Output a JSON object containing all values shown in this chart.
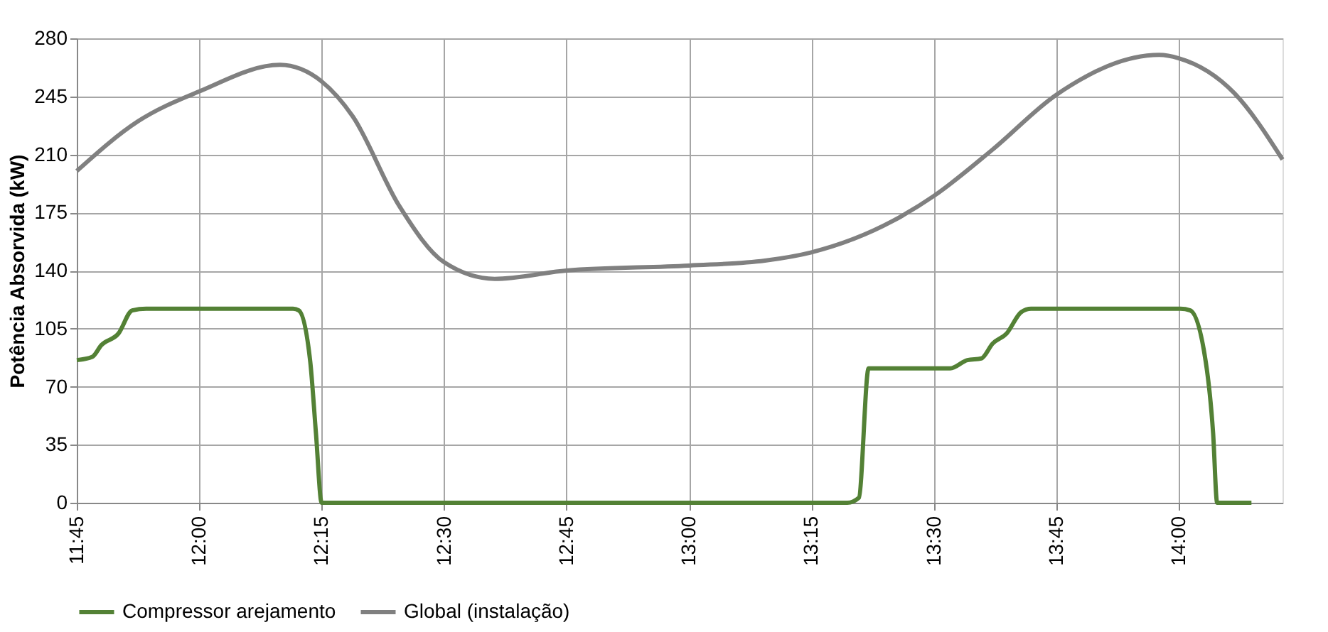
{
  "chart_data": {
    "type": "line",
    "ylabel": "Potência Absorvida (kW)",
    "xlim": [
      11.75,
      14.2117
    ],
    "ylim": [
      0,
      280
    ],
    "yticks": [
      0,
      35,
      70,
      105,
      140,
      175,
      210,
      245,
      280
    ],
    "xticks": [
      {
        "value": 11.75,
        "label": "11:45"
      },
      {
        "value": 12.0,
        "label": "12:00"
      },
      {
        "value": 12.25,
        "label": "12:15"
      },
      {
        "value": 12.5,
        "label": "12:30"
      },
      {
        "value": 12.75,
        "label": "12:45"
      },
      {
        "value": 13.0,
        "label": "13:00"
      },
      {
        "value": 13.25,
        "label": "13:15"
      },
      {
        "value": 13.5,
        "label": "13:30"
      },
      {
        "value": 13.75,
        "label": "13:45"
      },
      {
        "value": 14.0,
        "label": "14:00"
      }
    ],
    "grid": true,
    "legend": "bottom",
    "marker": "none",
    "line_style": "solid",
    "series": [
      {
        "name": "Compressor arejamento",
        "color": "#538135",
        "x": [
          11.75,
          11.7817,
          11.8,
          11.835,
          11.8633,
          11.8917,
          12.1917,
          12.2033,
          12.2267,
          12.2383,
          12.25,
          13.3233,
          13.3467,
          13.3667,
          13.5333,
          13.5683,
          13.5967,
          13.62,
          13.6483,
          13.6783,
          13.6983,
          14.0033,
          14.0233,
          14.055,
          14.07,
          14.0783,
          14.1483
        ],
        "values": [
          86,
          88,
          95,
          102,
          116,
          117,
          117,
          116,
          85,
          42,
          0,
          0,
          3,
          81,
          81,
          86,
          87,
          96,
          102,
          115,
          117,
          117,
          116,
          85,
          42,
          0,
          0
        ]
      },
      {
        "name": "Global (instalação)",
        "color": "#808080",
        "x": [
          11.75,
          11.875,
          12.0,
          12.165,
          12.25,
          12.3133,
          12.4083,
          12.5,
          12.6033,
          12.75,
          13.0,
          13.155,
          13.25,
          13.4167,
          13.5,
          13.62,
          13.75,
          13.96,
          14.0,
          14.1133,
          14.2117
        ],
        "values": [
          200,
          230,
          248,
          264,
          254,
          233,
          179,
          145,
          135,
          140,
          143,
          146,
          151,
          170,
          185,
          213,
          246,
          270,
          268,
          247,
          207
        ]
      }
    ]
  }
}
